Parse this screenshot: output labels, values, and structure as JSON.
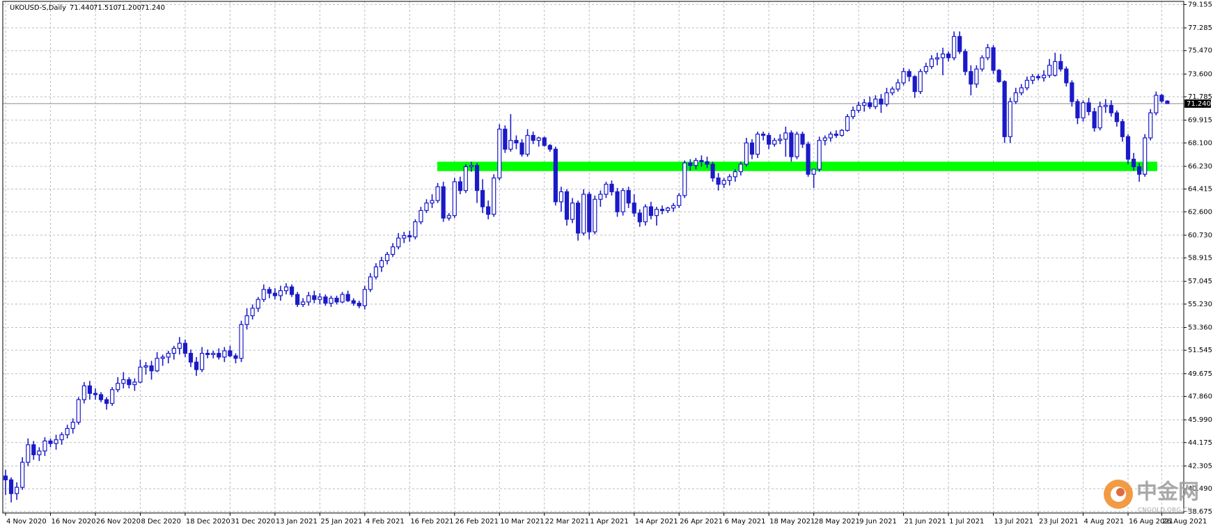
{
  "chart_data": {
    "type": "candlestick",
    "title": "UKOUSD-S,Daily",
    "ohlc_text": [
      "71.440",
      "71.510",
      "71.200",
      "71.240"
    ],
    "color": "#1a1ac8",
    "zone": {
      "low": 65.85,
      "high": 66.6,
      "color": "#00ff00"
    },
    "last_price": {
      "value": 71.24,
      "label": "71.240"
    },
    "ylim": [
      38.55,
      79.4
    ],
    "yticks": [
      {
        "value": 79.155,
        "label": "79.155"
      },
      {
        "value": 77.285,
        "label": "77.285"
      },
      {
        "value": 75.47,
        "label": "75.470"
      },
      {
        "value": 73.6,
        "label": "73.600"
      },
      {
        "value": 71.785,
        "label": "71.785"
      },
      {
        "value": 69.915,
        "label": "69.915"
      },
      {
        "value": 68.1,
        "label": "68.100"
      },
      {
        "value": 66.23,
        "label": "66.230"
      },
      {
        "value": 64.415,
        "label": "64.415"
      },
      {
        "value": 62.6,
        "label": "62.600"
      },
      {
        "value": 60.73,
        "label": "60.730"
      },
      {
        "value": 58.915,
        "label": "58.915"
      },
      {
        "value": 57.045,
        "label": "57.045"
      },
      {
        "value": 55.23,
        "label": "55.230"
      },
      {
        "value": 53.36,
        "label": "53.360"
      },
      {
        "value": 51.545,
        "label": "51.545"
      },
      {
        "value": 49.675,
        "label": "49.675"
      },
      {
        "value": 47.86,
        "label": "47.860"
      },
      {
        "value": 45.99,
        "label": "45.990"
      },
      {
        "value": 44.175,
        "label": "44.175"
      },
      {
        "value": 42.305,
        "label": "42.305"
      },
      {
        "value": 40.49,
        "label": "40.490"
      },
      {
        "value": 38.675,
        "label": "38.675"
      }
    ],
    "grid": true,
    "categories": [
      "4 Nov 2020",
      null,
      null,
      null,
      null,
      null,
      null,
      null,
      "16 Nov 2020",
      null,
      null,
      null,
      null,
      null,
      null,
      null,
      "26 Nov 2020",
      null,
      null,
      null,
      null,
      null,
      null,
      null,
      "8 Dec 2020",
      null,
      null,
      null,
      null,
      null,
      null,
      null,
      "18 Dec 2020",
      null,
      null,
      null,
      null,
      null,
      null,
      null,
      "31 Dec 2020",
      null,
      null,
      null,
      null,
      null,
      null,
      null,
      "13 Jan 2021",
      null,
      null,
      null,
      null,
      null,
      null,
      null,
      "25 Jan 2021",
      null,
      null,
      null,
      null,
      null,
      null,
      null,
      "4 Feb 2021",
      null,
      null,
      null,
      null,
      null,
      null,
      null,
      "16 Feb 2021",
      null,
      null,
      null,
      null,
      null,
      null,
      null,
      "26 Feb 2021",
      null,
      null,
      null,
      null,
      null,
      null,
      null,
      "10 Mar 2021",
      null,
      null,
      null,
      null,
      null,
      null,
      null,
      "22 Mar 2021",
      null,
      null,
      null,
      null,
      null,
      null,
      null,
      "1 Apr 2021",
      null,
      null,
      null,
      null,
      null,
      null,
      null,
      "14 Apr 2021",
      null,
      null,
      null,
      null,
      null,
      null,
      null,
      "26 Apr 2021",
      null,
      null,
      null,
      null,
      null,
      null,
      null,
      "6 May 2021",
      null,
      null,
      null,
      null,
      null,
      null,
      null,
      "18 May 2021",
      null,
      null,
      null,
      null,
      null,
      null,
      null,
      "28 May 2021",
      null,
      null,
      null,
      null,
      null,
      null,
      null,
      "9 Jun 2021",
      null,
      null,
      null,
      null,
      null,
      null,
      null,
      "21 Jun 2021",
      null,
      null,
      null,
      null,
      null,
      null,
      null,
      "1 Jul 2021",
      null,
      null,
      null,
      null,
      null,
      null,
      null,
      "13 Jul 2021",
      null,
      null,
      null,
      null,
      null,
      null,
      null,
      "23 Jul 2021",
      null,
      null,
      null,
      null,
      null,
      null,
      null,
      "4 Aug 2021",
      null,
      null,
      null,
      null,
      null,
      null,
      null,
      "16 Aug 2021",
      null,
      null,
      null,
      null,
      null,
      "26 Aug 2021",
      null
    ],
    "ohlc": [
      [
        41.5,
        42.0,
        40.0,
        41.2
      ],
      [
        41.2,
        41.4,
        39.4,
        40.1
      ],
      [
        40.1,
        41.0,
        39.6,
        40.6
      ],
      [
        40.6,
        43.0,
        40.4,
        42.6
      ],
      [
        42.6,
        44.5,
        42.3,
        44.0
      ],
      [
        44.0,
        44.3,
        42.8,
        43.2
      ],
      [
        43.2,
        43.8,
        42.7,
        43.5
      ],
      [
        43.5,
        44.6,
        43.1,
        44.3
      ],
      [
        44.3,
        44.5,
        43.8,
        44.1
      ],
      [
        44.1,
        44.8,
        43.6,
        44.4
      ],
      [
        44.4,
        45.0,
        44.0,
        44.8
      ],
      [
        44.8,
        45.6,
        44.5,
        45.3
      ],
      [
        45.3,
        46.1,
        44.9,
        45.8
      ],
      [
        45.8,
        47.8,
        45.6,
        47.6
      ],
      [
        47.6,
        49.0,
        47.3,
        48.7
      ],
      [
        48.7,
        49.1,
        47.6,
        48.1
      ],
      [
        48.1,
        48.5,
        47.6,
        48.0
      ],
      [
        48.0,
        48.2,
        47.4,
        47.6
      ],
      [
        47.6,
        47.8,
        46.8,
        47.3
      ],
      [
        47.3,
        48.6,
        47.1,
        48.4
      ],
      [
        48.4,
        49.4,
        48.2,
        48.9
      ],
      [
        48.9,
        49.8,
        48.5,
        49.2
      ],
      [
        49.2,
        49.4,
        48.5,
        48.8
      ],
      [
        48.8,
        49.3,
        48.3,
        49.0
      ],
      [
        49.0,
        50.8,
        48.9,
        50.2
      ],
      [
        50.2,
        50.6,
        49.6,
        50.3
      ],
      [
        50.3,
        50.7,
        49.2,
        49.9
      ],
      [
        49.9,
        51.4,
        49.8,
        50.9
      ],
      [
        50.9,
        51.2,
        50.3,
        51.0
      ],
      [
        51.0,
        51.5,
        50.5,
        51.3
      ],
      [
        51.3,
        51.9,
        50.8,
        51.7
      ],
      [
        51.7,
        52.6,
        51.2,
        52.1
      ],
      [
        52.1,
        52.4,
        51.0,
        51.3
      ],
      [
        51.3,
        51.6,
        50.2,
        50.6
      ],
      [
        50.6,
        51.0,
        49.5,
        50.0
      ],
      [
        50.0,
        51.8,
        49.8,
        51.3
      ],
      [
        51.3,
        51.6,
        50.9,
        51.2
      ],
      [
        51.2,
        51.5,
        50.9,
        51.3
      ],
      [
        51.3,
        51.7,
        50.8,
        51.0
      ],
      [
        51.0,
        51.8,
        50.6,
        51.5
      ],
      [
        51.5,
        51.9,
        51.0,
        51.1
      ],
      [
        51.1,
        51.3,
        50.5,
        50.9
      ],
      [
        50.9,
        53.9,
        50.6,
        53.6
      ],
      [
        53.6,
        54.9,
        53.2,
        54.3
      ],
      [
        54.3,
        55.2,
        54.0,
        54.9
      ],
      [
        54.9,
        55.8,
        54.6,
        55.6
      ],
      [
        55.6,
        56.8,
        55.4,
        56.4
      ],
      [
        56.4,
        56.6,
        55.7,
        56.1
      ],
      [
        56.1,
        56.5,
        55.6,
        55.9
      ],
      [
        55.9,
        56.7,
        55.5,
        56.3
      ],
      [
        56.3,
        56.9,
        56.0,
        56.6
      ],
      [
        56.6,
        56.8,
        55.8,
        56.0
      ],
      [
        56.0,
        56.2,
        55.0,
        55.2
      ],
      [
        55.2,
        55.7,
        55.0,
        55.4
      ],
      [
        55.4,
        56.2,
        55.1,
        55.9
      ],
      [
        55.9,
        56.3,
        55.3,
        55.6
      ],
      [
        55.6,
        56.1,
        55.2,
        55.8
      ],
      [
        55.8,
        56.0,
        55.1,
        55.3
      ],
      [
        55.3,
        55.9,
        55.0,
        55.7
      ],
      [
        55.7,
        55.9,
        55.2,
        55.4
      ],
      [
        55.4,
        56.2,
        55.3,
        56.0
      ],
      [
        56.0,
        56.3,
        55.4,
        55.5
      ],
      [
        55.5,
        55.7,
        55.1,
        55.3
      ],
      [
        55.3,
        55.5,
        54.9,
        55.1
      ],
      [
        55.1,
        56.7,
        54.8,
        56.4
      ],
      [
        56.4,
        57.7,
        56.2,
        57.4
      ],
      [
        57.4,
        58.5,
        57.2,
        58.2
      ],
      [
        58.2,
        59.0,
        57.8,
        58.7
      ],
      [
        58.7,
        59.4,
        58.4,
        59.2
      ],
      [
        59.2,
        60.1,
        59.0,
        59.8
      ],
      [
        59.8,
        60.9,
        59.6,
        60.5
      ],
      [
        60.5,
        61.0,
        60.1,
        60.7
      ],
      [
        60.7,
        61.1,
        60.2,
        60.6
      ],
      [
        60.6,
        62.0,
        60.4,
        61.8
      ],
      [
        61.8,
        63.0,
        61.6,
        62.7
      ],
      [
        62.7,
        63.6,
        62.5,
        63.3
      ],
      [
        63.3,
        64.0,
        62.9,
        63.5
      ],
      [
        63.5,
        64.9,
        63.3,
        64.6
      ],
      [
        64.6,
        65.0,
        61.8,
        62.1
      ],
      [
        62.1,
        62.5,
        61.9,
        62.3
      ],
      [
        62.3,
        65.3,
        62.1,
        65.0
      ],
      [
        65.0,
        65.4,
        64.0,
        64.3
      ],
      [
        64.3,
        66.4,
        64.1,
        66.2
      ],
      [
        66.2,
        66.6,
        65.8,
        66.3
      ],
      [
        66.3,
        66.5,
        63.3,
        64.3
      ],
      [
        64.3,
        65.2,
        62.5,
        63.0
      ],
      [
        63.0,
        63.5,
        62.0,
        62.4
      ],
      [
        62.4,
        65.6,
        62.2,
        65.3
      ],
      [
        65.3,
        69.6,
        65.1,
        69.2
      ],
      [
        69.2,
        69.5,
        67.3,
        67.6
      ],
      [
        67.6,
        70.4,
        67.4,
        68.3
      ],
      [
        68.3,
        68.7,
        67.6,
        68.1
      ],
      [
        68.1,
        68.4,
        67.0,
        67.2
      ],
      [
        67.2,
        69.2,
        67.0,
        68.7
      ],
      [
        68.7,
        69.0,
        68.0,
        68.3
      ],
      [
        68.3,
        68.6,
        67.8,
        68.5
      ],
      [
        68.5,
        68.6,
        67.8,
        67.9
      ],
      [
        67.9,
        68.0,
        67.4,
        67.6
      ],
      [
        67.6,
        67.8,
        63.1,
        63.4
      ],
      [
        63.4,
        64.6,
        62.6,
        64.2
      ],
      [
        64.2,
        64.4,
        61.5,
        62.0
      ],
      [
        62.0,
        63.7,
        61.7,
        63.3
      ],
      [
        63.3,
        63.5,
        60.3,
        60.9
      ],
      [
        60.9,
        64.4,
        60.7,
        64.0
      ],
      [
        64.0,
        64.2,
        60.4,
        61.0
      ],
      [
        61.0,
        63.9,
        60.8,
        63.6
      ],
      [
        63.6,
        64.3,
        63.0,
        64.0
      ],
      [
        64.0,
        65.0,
        63.7,
        64.8
      ],
      [
        64.8,
        65.1,
        63.9,
        64.2
      ],
      [
        64.2,
        64.5,
        62.2,
        62.6
      ],
      [
        62.6,
        64.5,
        62.3,
        64.3
      ],
      [
        64.3,
        64.6,
        62.9,
        63.3
      ],
      [
        63.3,
        64.0,
        62.2,
        62.5
      ],
      [
        62.5,
        62.8,
        61.4,
        61.8
      ],
      [
        61.8,
        63.2,
        61.5,
        63.0
      ],
      [
        63.0,
        63.4,
        62.0,
        62.3
      ],
      [
        62.3,
        63.0,
        61.5,
        62.8
      ],
      [
        62.8,
        63.1,
        62.4,
        62.7
      ],
      [
        62.7,
        63.0,
        62.5,
        62.9
      ],
      [
        62.9,
        63.3,
        62.6,
        63.1
      ],
      [
        63.1,
        64.1,
        62.9,
        63.9
      ],
      [
        63.9,
        66.7,
        63.7,
        66.5
      ],
      [
        66.5,
        66.8,
        65.9,
        66.3
      ],
      [
        66.3,
        66.9,
        66.0,
        66.7
      ],
      [
        66.7,
        67.1,
        66.2,
        66.6
      ],
      [
        66.6,
        67.0,
        66.1,
        66.4
      ],
      [
        66.4,
        66.6,
        65.0,
        65.3
      ],
      [
        65.3,
        65.7,
        64.3,
        64.8
      ],
      [
        64.8,
        65.3,
        64.5,
        65.1
      ],
      [
        65.1,
        65.6,
        64.7,
        65.4
      ],
      [
        65.4,
        66.0,
        65.0,
        65.8
      ],
      [
        65.8,
        66.6,
        65.5,
        66.4
      ],
      [
        66.4,
        68.5,
        66.2,
        68.1
      ],
      [
        68.1,
        68.4,
        66.8,
        67.2
      ],
      [
        67.2,
        69.0,
        66.9,
        68.8
      ],
      [
        68.8,
        69.0,
        68.3,
        68.7
      ],
      [
        68.7,
        68.9,
        67.6,
        68.0
      ],
      [
        68.0,
        68.5,
        67.8,
        68.3
      ],
      [
        68.3,
        68.8,
        68.0,
        68.4
      ],
      [
        68.4,
        69.4,
        67.0,
        68.9
      ],
      [
        68.9,
        69.1,
        66.6,
        67.0
      ],
      [
        67.0,
        69.0,
        66.8,
        68.8
      ],
      [
        68.8,
        69.0,
        67.7,
        68.0
      ],
      [
        68.0,
        68.2,
        65.4,
        65.6
      ],
      [
        65.6,
        66.0,
        64.5,
        66.0
      ],
      [
        66.0,
        68.6,
        65.8,
        68.3
      ],
      [
        68.3,
        68.7,
        67.9,
        68.5
      ],
      [
        68.5,
        69.0,
        68.2,
        68.8
      ],
      [
        68.8,
        69.1,
        68.5,
        68.7
      ],
      [
        68.7,
        69.2,
        68.6,
        69.1
      ],
      [
        69.1,
        70.4,
        69.0,
        70.2
      ],
      [
        70.2,
        71.0,
        70.0,
        70.7
      ],
      [
        70.7,
        71.4,
        70.5,
        71.1
      ],
      [
        71.1,
        71.6,
        70.6,
        71.3
      ],
      [
        71.3,
        71.8,
        70.8,
        71.0
      ],
      [
        71.0,
        71.9,
        70.8,
        71.6
      ],
      [
        71.6,
        72.0,
        70.5,
        71.2
      ],
      [
        71.2,
        72.5,
        71.0,
        72.1
      ],
      [
        72.1,
        72.6,
        71.9,
        72.4
      ],
      [
        72.4,
        73.2,
        72.2,
        72.9
      ],
      [
        72.9,
        74.1,
        72.7,
        73.8
      ],
      [
        73.8,
        74.0,
        73.0,
        73.4
      ],
      [
        73.4,
        73.5,
        71.7,
        72.2
      ],
      [
        72.2,
        74.0,
        72.0,
        73.8
      ],
      [
        73.8,
        74.5,
        73.6,
        74.2
      ],
      [
        74.2,
        75.1,
        74.0,
        74.8
      ],
      [
        74.8,
        75.3,
        74.3,
        74.9
      ],
      [
        74.9,
        75.7,
        73.5,
        75.2
      ],
      [
        75.2,
        75.4,
        74.6,
        74.9
      ],
      [
        74.9,
        77.0,
        74.7,
        76.6
      ],
      [
        76.6,
        77.0,
        75.2,
        75.4
      ],
      [
        75.4,
        75.6,
        73.5,
        73.8
      ],
      [
        73.8,
        74.3,
        71.9,
        72.8
      ],
      [
        72.8,
        74.3,
        72.5,
        74.0
      ],
      [
        74.0,
        75.1,
        73.8,
        74.9
      ],
      [
        74.9,
        76.0,
        74.7,
        75.7
      ],
      [
        75.7,
        75.9,
        73.6,
        73.9
      ],
      [
        73.9,
        74.0,
        72.9,
        73.0
      ],
      [
        73.0,
        73.1,
        68.1,
        68.6
      ],
      [
        68.6,
        71.7,
        68.1,
        71.4
      ],
      [
        71.4,
        72.5,
        71.2,
        72.1
      ],
      [
        72.1,
        72.8,
        71.9,
        72.5
      ],
      [
        72.5,
        73.4,
        72.3,
        73.1
      ],
      [
        73.1,
        73.6,
        72.8,
        73.4
      ],
      [
        73.4,
        73.6,
        73.1,
        73.3
      ],
      [
        73.3,
        73.9,
        73.0,
        73.5
      ],
      [
        73.5,
        74.8,
        73.3,
        74.3
      ],
      [
        73.5,
        75.3,
        73.4,
        74.6
      ],
      [
        74.6,
        75.2,
        73.8,
        74.0
      ],
      [
        74.0,
        74.2,
        72.6,
        72.9
      ],
      [
        72.9,
        73.1,
        71.0,
        71.4
      ],
      [
        71.4,
        71.6,
        69.6,
        70.1
      ],
      [
        70.1,
        71.5,
        69.8,
        71.3
      ],
      [
        71.3,
        71.7,
        70.3,
        70.6
      ],
      [
        70.6,
        70.9,
        69.0,
        69.3
      ],
      [
        69.3,
        71.4,
        69.1,
        71.0
      ],
      [
        71.0,
        71.6,
        70.5,
        71.1
      ],
      [
        71.1,
        71.5,
        70.2,
        70.5
      ],
      [
        70.5,
        70.7,
        69.4,
        69.8
      ],
      [
        69.8,
        70.0,
        68.2,
        68.6
      ],
      [
        68.6,
        68.8,
        66.4,
        66.8
      ],
      [
        66.8,
        67.3,
        65.9,
        66.2
      ],
      [
        66.2,
        66.5,
        65.0,
        65.6
      ],
      [
        65.6,
        68.8,
        65.4,
        68.5
      ],
      [
        68.5,
        70.8,
        68.3,
        70.5
      ],
      [
        70.5,
        72.2,
        70.3,
        71.9
      ],
      [
        71.9,
        72.0,
        71.3,
        71.44
      ],
      [
        71.44,
        71.51,
        71.2,
        71.24
      ]
    ],
    "watermark": {
      "name": "中金网",
      "site": "CNGOLD.ORG.CN"
    }
  }
}
